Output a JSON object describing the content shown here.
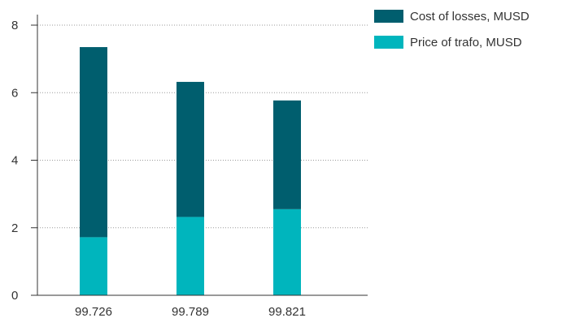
{
  "chart_data": {
    "type": "bar",
    "stacked": true,
    "categories": [
      "99.726",
      "99.789",
      "99.821"
    ],
    "series": [
      {
        "name": "Price of trafo, MUSD",
        "values": [
          1.72,
          2.32,
          2.55
        ],
        "color": "#00b5bd"
      },
      {
        "name": "Cost of losses, MUSD",
        "values": [
          5.63,
          4.0,
          3.22
        ],
        "color": "#005e6e"
      }
    ],
    "legend_order": [
      "Cost of losses, MUSD",
      "Price of trafo, MUSD"
    ],
    "y_ticks": [
      "0",
      "2",
      "4",
      "6",
      "8"
    ],
    "ylim": [
      0,
      8
    ],
    "grid": "horizontal dotted",
    "legend_position": "top-right"
  }
}
